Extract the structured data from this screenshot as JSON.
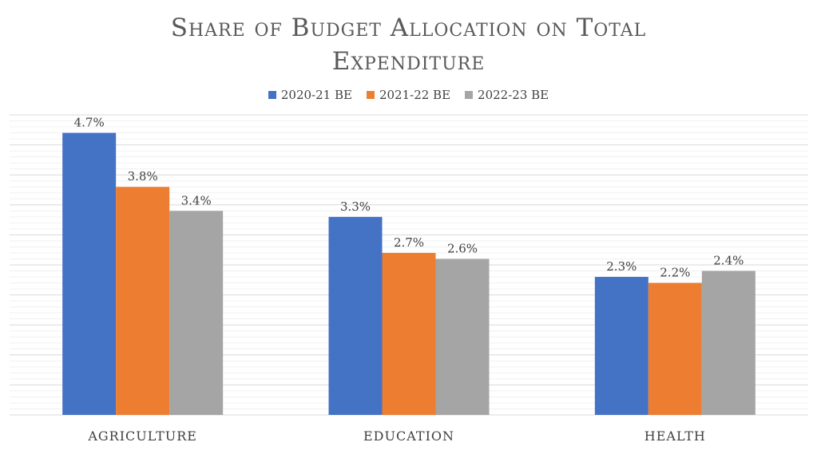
{
  "chart_data": {
    "type": "bar",
    "title": "Share of Budget Allocation on Total Expenditure",
    "title_lines": [
      "Share of Budget Allocation on Total",
      "Expenditure"
    ],
    "categories": [
      "AGRICULTURE",
      "EDUCATION",
      "HEALTH"
    ],
    "series": [
      {
        "name": "2020-21 BE",
        "color": "#4472C4",
        "values": [
          4.7,
          3.3,
          2.3
        ],
        "labels": [
          "4.7%",
          "3.3%",
          "2.3%"
        ]
      },
      {
        "name": "2021-22 BE",
        "color": "#ED7D31",
        "values": [
          3.8,
          2.7,
          2.2
        ],
        "labels": [
          "3.8%",
          "2.7%",
          "2.2%"
        ]
      },
      {
        "name": "2022-23 BE",
        "color": "#A5A5A5",
        "values": [
          3.4,
          2.6,
          2.4
        ],
        "labels": [
          "3.4%",
          "2.6%",
          "2.4%"
        ]
      }
    ],
    "xlabel": "",
    "ylabel": "",
    "ylim": [
      0,
      5
    ],
    "grid": true,
    "legend_position": "top"
  }
}
